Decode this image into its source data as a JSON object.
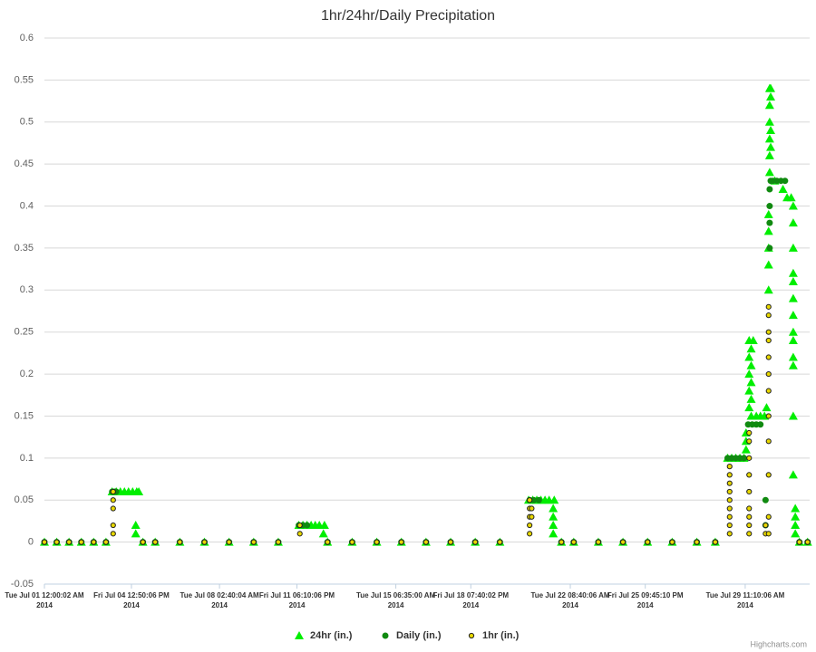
{
  "chart_data": {
    "type": "scatter",
    "title": "1hr/24hr/Daily Precipitation",
    "credits": "Highcharts.com",
    "legend": "bottom",
    "grid": true,
    "xlim": [
      "2014-07-01T00:00:00",
      "2014-08-01T02:00:00"
    ],
    "xticks": [
      {
        "value": "2014-07-01T00:00:02",
        "label": [
          "Tue Jul 01 12:00:02 AM",
          "2014"
        ]
      },
      {
        "value": "2014-07-04T12:50:06",
        "label": [
          "Fri Jul 04 12:50:06 PM",
          "2014"
        ]
      },
      {
        "value": "2014-07-08T02:40:04",
        "label": [
          "Tue Jul 08 02:40:04 AM",
          "2014"
        ]
      },
      {
        "value": "2014-07-11T06:10:06",
        "label": [
          "Fri Jul 11 06:10:06 PM",
          "2014"
        ]
      },
      {
        "value": "2014-07-15T06:35:00",
        "label": [
          "Tue Jul 15 06:35:00 AM",
          "2014"
        ]
      },
      {
        "value": "2014-07-18T07:40:02",
        "label": [
          "Fri Jul 18 07:40:02 PM",
          "2014"
        ]
      },
      {
        "value": "2014-07-22T08:40:06",
        "label": [
          "Tue Jul 22 08:40:06 AM",
          "2014"
        ]
      },
      {
        "value": "2014-07-25T09:45:10",
        "label": [
          "Fri Jul 25 09:45:10 PM",
          "2014"
        ]
      },
      {
        "value": "2014-07-29T11:10:06",
        "label": [
          "Tue Jul 29 11:10:06 AM",
          "2014"
        ]
      }
    ],
    "ylim": [
      -0.05,
      0.6
    ],
    "yticks": [
      -0.05,
      0,
      0.05,
      0.1,
      0.15,
      0.2,
      0.25,
      0.3,
      0.35,
      0.4,
      0.45,
      0.5,
      0.55,
      0.6
    ],
    "series": [
      {
        "name": "24hr (in.)",
        "color": "#00ee00",
        "marker": "triangle",
        "x": [
          "2014-07-01T00:00",
          "2014-07-01T12:00",
          "2014-07-02T00:00",
          "2014-07-02T12:00",
          "2014-07-03T00:00",
          "2014-07-03T12:00",
          "2014-07-05T00:00",
          "2014-07-05T12:00",
          "2014-07-06T12:00",
          "2014-07-07T12:00",
          "2014-07-08T12:00",
          "2014-07-09T12:00",
          "2014-07-10T12:00",
          "2014-07-12T12:00",
          "2014-07-13T12:00",
          "2014-07-14T12:00",
          "2014-07-15T12:00",
          "2014-07-16T12:00",
          "2014-07-17T12:00",
          "2014-07-18T12:00",
          "2014-07-19T12:00",
          "2014-07-22T00:00",
          "2014-07-22T12:00",
          "2014-07-23T12:00",
          "2014-07-24T12:00",
          "2014-07-25T12:00",
          "2014-07-26T12:00",
          "2014-07-27T12:00",
          "2014-07-28T06:00",
          "2014-07-31T16:00",
          "2014-08-01T00:00",
          "2014-07-03T18:00",
          "2014-07-03T22:00",
          "2014-07-04T02:00",
          "2014-07-04T06:00",
          "2014-07-04T10:00",
          "2014-07-04T14:00",
          "2014-07-04T18:00",
          "2014-07-04T20:00",
          "2014-07-04T17:00",
          "2014-07-04T17:00",
          "2014-07-11T08:00",
          "2014-07-11T12:00",
          "2014-07-11T16:00",
          "2014-07-11T20:00",
          "2014-07-12T00:00",
          "2014-07-12T04:00",
          "2014-07-12T09:00",
          "2014-07-12T08:00",
          "2014-07-20T16:00",
          "2014-07-20T20:00",
          "2014-07-21T00:00",
          "2014-07-21T04:00",
          "2014-07-21T08:00",
          "2014-07-21T12:00",
          "2014-07-21T17:00",
          "2014-07-21T16:00",
          "2014-07-21T16:00",
          "2014-07-21T16:00",
          "2014-07-21T16:00",
          "2014-07-28T18:00",
          "2014-07-28T22:00",
          "2014-07-29T02:00",
          "2014-07-29T06:00",
          "2014-07-29T10:00",
          "2014-07-29T12:00",
          "2014-07-29T12:00",
          "2014-07-29T12:00",
          "2014-07-29T15:00",
          "2014-07-29T15:00",
          "2014-07-29T15:00",
          "2014-07-29T15:00",
          "2014-07-29T15:00",
          "2014-07-29T17:00",
          "2014-07-29T17:00",
          "2014-07-29T17:00",
          "2014-07-29T17:00",
          "2014-07-29T17:00",
          "2014-07-29T19:00",
          "2014-07-29T22:00",
          "2014-07-30T02:00",
          "2014-07-30T06:00",
          "2014-07-30T08:00",
          "2014-07-30T10:00",
          "2014-07-30T10:00",
          "2014-07-30T10:00",
          "2014-07-30T10:00",
          "2014-07-30T10:00",
          "2014-07-30T11:00",
          "2014-07-30T11:00",
          "2014-07-30T11:00",
          "2014-07-30T11:00",
          "2014-07-30T11:00",
          "2014-07-30T11:00",
          "2014-07-30T12:00",
          "2014-07-30T12:00",
          "2014-07-30T12:00",
          "2014-07-30T12:00",
          "2014-07-30T16:00",
          "2014-07-31T00:00",
          "2014-07-31T04:00",
          "2014-07-31T08:00",
          "2014-07-31T10:00",
          "2014-07-31T10:00",
          "2014-07-31T10:00",
          "2014-07-31T10:00",
          "2014-07-31T10:00",
          "2014-07-31T10:00",
          "2014-07-31T10:00",
          "2014-07-31T10:00",
          "2014-07-31T10:00",
          "2014-07-31T10:00",
          "2014-07-31T10:00",
          "2014-07-31T10:00",
          "2014-07-31T10:00",
          "2014-07-31T12:00",
          "2014-07-31T12:00",
          "2014-07-31T12:00",
          "2014-07-31T12:00"
        ],
        "values": [
          0,
          0,
          0,
          0,
          0,
          0,
          0,
          0,
          0,
          0,
          0,
          0,
          0,
          0,
          0,
          0,
          0,
          0,
          0,
          0,
          0,
          0,
          0,
          0,
          0,
          0,
          0,
          0,
          0,
          0,
          0,
          0.06,
          0.06,
          0.06,
          0.06,
          0.06,
          0.06,
          0.06,
          0.06,
          0.02,
          0.01,
          0.02,
          0.02,
          0.02,
          0.02,
          0.02,
          0.02,
          0.02,
          0.01,
          0.05,
          0.05,
          0.05,
          0.05,
          0.05,
          0.05,
          0.05,
          0.04,
          0.03,
          0.02,
          0.01,
          0.1,
          0.1,
          0.1,
          0.1,
          0.1,
          0.11,
          0.12,
          0.13,
          0.16,
          0.18,
          0.2,
          0.22,
          0.24,
          0.15,
          0.17,
          0.19,
          0.21,
          0.23,
          0.24,
          0.15,
          0.15,
          0.15,
          0.16,
          0.3,
          0.33,
          0.35,
          0.37,
          0.39,
          0.44,
          0.48,
          0.52,
          0.54,
          0.5,
          0.46,
          0.54,
          0.53,
          0.49,
          0.47,
          0.43,
          0.42,
          0.41,
          0.41,
          0.4,
          0.38,
          0.35,
          0.32,
          0.31,
          0.29,
          0.27,
          0.25,
          0.24,
          0.22,
          0.21,
          0.15,
          0.08,
          0.04,
          0.03,
          0.02,
          0.01
        ]
      },
      {
        "name": "Daily (in.)",
        "color": "#108a10",
        "marker": "circle",
        "x": [
          "2014-07-01T00:00",
          "2014-07-01T12:00",
          "2014-07-02T00:00",
          "2014-07-02T12:00",
          "2014-07-03T00:00",
          "2014-07-03T12:00",
          "2014-07-05T00:00",
          "2014-07-05T12:00",
          "2014-07-06T12:00",
          "2014-07-07T12:00",
          "2014-07-08T12:00",
          "2014-07-09T12:00",
          "2014-07-10T12:00",
          "2014-07-12T12:00",
          "2014-07-13T12:00",
          "2014-07-14T12:00",
          "2014-07-15T12:00",
          "2014-07-16T12:00",
          "2014-07-17T12:00",
          "2014-07-18T12:00",
          "2014-07-19T12:00",
          "2014-07-22T00:00",
          "2014-07-22T12:00",
          "2014-07-23T12:00",
          "2014-07-24T12:00",
          "2014-07-25T12:00",
          "2014-07-26T12:00",
          "2014-07-27T12:00",
          "2014-07-28T06:00",
          "2014-07-31T16:00",
          "2014-08-01T00:00",
          "2014-07-03T18:00",
          "2014-07-03T20:00",
          "2014-07-03T22:00",
          "2014-07-11T08:00",
          "2014-07-11T12:00",
          "2014-07-11T16:00",
          "2014-07-20T17:00",
          "2014-07-20T21:00",
          "2014-07-21T02:00",
          "2014-07-28T18:00",
          "2014-07-28T22:00",
          "2014-07-29T02:00",
          "2014-07-29T06:00",
          "2014-07-29T10:00",
          "2014-07-29T14:00",
          "2014-07-29T18:00",
          "2014-07-29T22:00",
          "2014-07-30T02:00",
          "2014-07-30T07:00",
          "2014-07-30T07:00",
          "2014-07-30T11:00",
          "2014-07-30T11:00",
          "2014-07-30T11:00",
          "2014-07-30T11:00",
          "2014-07-30T12:00",
          "2014-07-30T14:00",
          "2014-07-30T18:00",
          "2014-07-30T22:00",
          "2014-07-31T02:00"
        ],
        "values": [
          0,
          0,
          0,
          0,
          0,
          0,
          0,
          0,
          0,
          0,
          0,
          0,
          0,
          0,
          0,
          0,
          0,
          0,
          0,
          0,
          0,
          0,
          0,
          0,
          0,
          0,
          0,
          0,
          0,
          0,
          0,
          0.06,
          0.06,
          0.06,
          0.02,
          0.02,
          0.02,
          0.05,
          0.05,
          0.05,
          0.1,
          0.1,
          0.1,
          0.1,
          0.1,
          0.14,
          0.14,
          0.14,
          0.14,
          0.02,
          0.05,
          0.35,
          0.38,
          0.4,
          0.42,
          0.43,
          0.43,
          0.43,
          0.43,
          0.43
        ]
      },
      {
        "name": "1hr (in.)",
        "color": "#e8d800",
        "marker": "ring",
        "x": [
          "2014-07-01T00:00",
          "2014-07-01T12:00",
          "2014-07-02T00:00",
          "2014-07-02T12:00",
          "2014-07-03T00:00",
          "2014-07-03T12:00",
          "2014-07-05T00:00",
          "2014-07-05T12:00",
          "2014-07-06T12:00",
          "2014-07-07T12:00",
          "2014-07-08T12:00",
          "2014-07-09T12:00",
          "2014-07-10T12:00",
          "2014-07-12T12:00",
          "2014-07-13T12:00",
          "2014-07-14T12:00",
          "2014-07-15T12:00",
          "2014-07-16T12:00",
          "2014-07-17T12:00",
          "2014-07-18T12:00",
          "2014-07-19T12:00",
          "2014-07-22T00:00",
          "2014-07-22T12:00",
          "2014-07-23T12:00",
          "2014-07-24T12:00",
          "2014-07-25T12:00",
          "2014-07-26T12:00",
          "2014-07-27T12:00",
          "2014-07-28T06:00",
          "2014-07-31T16:00",
          "2014-08-01T00:00",
          "2014-07-03T19:00",
          "2014-07-03T19:00",
          "2014-07-03T19:00",
          "2014-07-03T19:00",
          "2014-07-03T19:00",
          "2014-07-11T09:00",
          "2014-07-11T09:00",
          "2014-07-20T17:00",
          "2014-07-20T17:00",
          "2014-07-20T17:00",
          "2014-07-20T17:00",
          "2014-07-20T17:00",
          "2014-07-20T19:00",
          "2014-07-20T19:00",
          "2014-07-28T20:00",
          "2014-07-28T20:00",
          "2014-07-28T20:00",
          "2014-07-28T20:00",
          "2014-07-28T20:00",
          "2014-07-28T20:00",
          "2014-07-28T20:00",
          "2014-07-28T20:00",
          "2014-07-28T20:00",
          "2014-07-29T15:00",
          "2014-07-29T15:00",
          "2014-07-29T15:00",
          "2014-07-29T15:00",
          "2014-07-29T15:00",
          "2014-07-29T15:00",
          "2014-07-29T15:00",
          "2014-07-29T15:00",
          "2014-07-29T15:00",
          "2014-07-30T07:00",
          "2014-07-30T07:00",
          "2014-07-30T10:00",
          "2014-07-30T10:00",
          "2014-07-30T10:00",
          "2014-07-30T10:00",
          "2014-07-30T10:00",
          "2014-07-30T10:00",
          "2014-07-30T10:00",
          "2014-07-30T10:00",
          "2014-07-30T10:00",
          "2014-07-30T10:00",
          "2014-07-30T10:00",
          "2014-07-30T10:00"
        ],
        "values": [
          0,
          0,
          0,
          0,
          0,
          0,
          0,
          0,
          0,
          0,
          0,
          0,
          0,
          0,
          0,
          0,
          0,
          0,
          0,
          0,
          0,
          0,
          0,
          0,
          0,
          0,
          0,
          0,
          0,
          0,
          0,
          0.06,
          0.05,
          0.04,
          0.02,
          0.01,
          0.02,
          0.01,
          0.05,
          0.04,
          0.03,
          0.02,
          0.01,
          0.04,
          0.03,
          0.09,
          0.08,
          0.07,
          0.06,
          0.05,
          0.04,
          0.03,
          0.02,
          0.01,
          0.13,
          0.12,
          0.1,
          0.08,
          0.06,
          0.04,
          0.03,
          0.02,
          0.01,
          0.02,
          0.01,
          0.28,
          0.27,
          0.25,
          0.24,
          0.22,
          0.2,
          0.18,
          0.15,
          0.12,
          0.08,
          0.03,
          0.01
        ]
      }
    ]
  }
}
